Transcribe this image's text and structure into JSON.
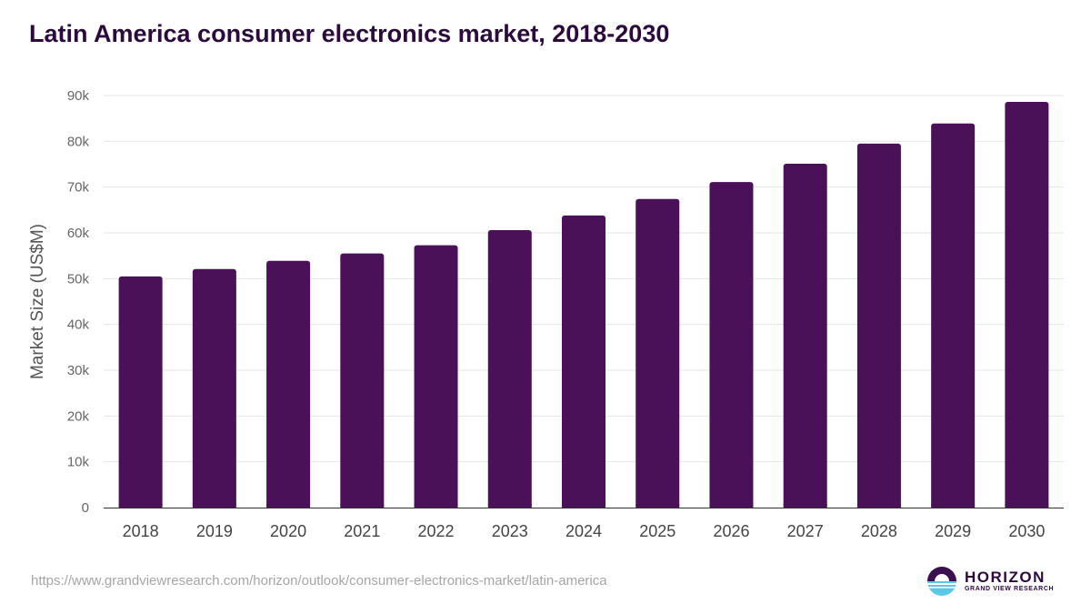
{
  "page": {
    "title": "Latin America consumer electronics market, 2018-2030",
    "source_url": "https://www.grandviewresearch.com/horizon/outlook/consumer-electronics-market/latin-america"
  },
  "logo": {
    "word": "HORIZON",
    "sub": "GRAND VIEW RESEARCH",
    "icon": "horizon-logo-icon",
    "colors": {
      "dark": "#3b0f4f",
      "light": "#5bc8e8"
    }
  },
  "colors": {
    "bar": "#4a1158",
    "title": "#2d0a3e",
    "grid": "#e6e6e6",
    "axis_text": "#666666"
  },
  "chart_data": {
    "type": "bar",
    "title": "Latin America consumer electronics market, 2018-2030",
    "xlabel": "",
    "ylabel": "Market Size (US$M)",
    "ylim": [
      0,
      90000
    ],
    "yticks": [
      0,
      10000,
      20000,
      30000,
      40000,
      50000,
      60000,
      70000,
      80000,
      90000
    ],
    "ytick_labels": [
      "0",
      "10k",
      "20k",
      "30k",
      "40k",
      "50k",
      "60k",
      "70k",
      "80k",
      "90k"
    ],
    "grid": true,
    "legend": "none",
    "categories": [
      "2018",
      "2019",
      "2020",
      "2021",
      "2022",
      "2023",
      "2024",
      "2025",
      "2026",
      "2027",
      "2028",
      "2029",
      "2030"
    ],
    "values": [
      50500,
      52100,
      53900,
      55500,
      57300,
      60600,
      63800,
      67400,
      71100,
      75100,
      79500,
      83900,
      88600
    ]
  }
}
